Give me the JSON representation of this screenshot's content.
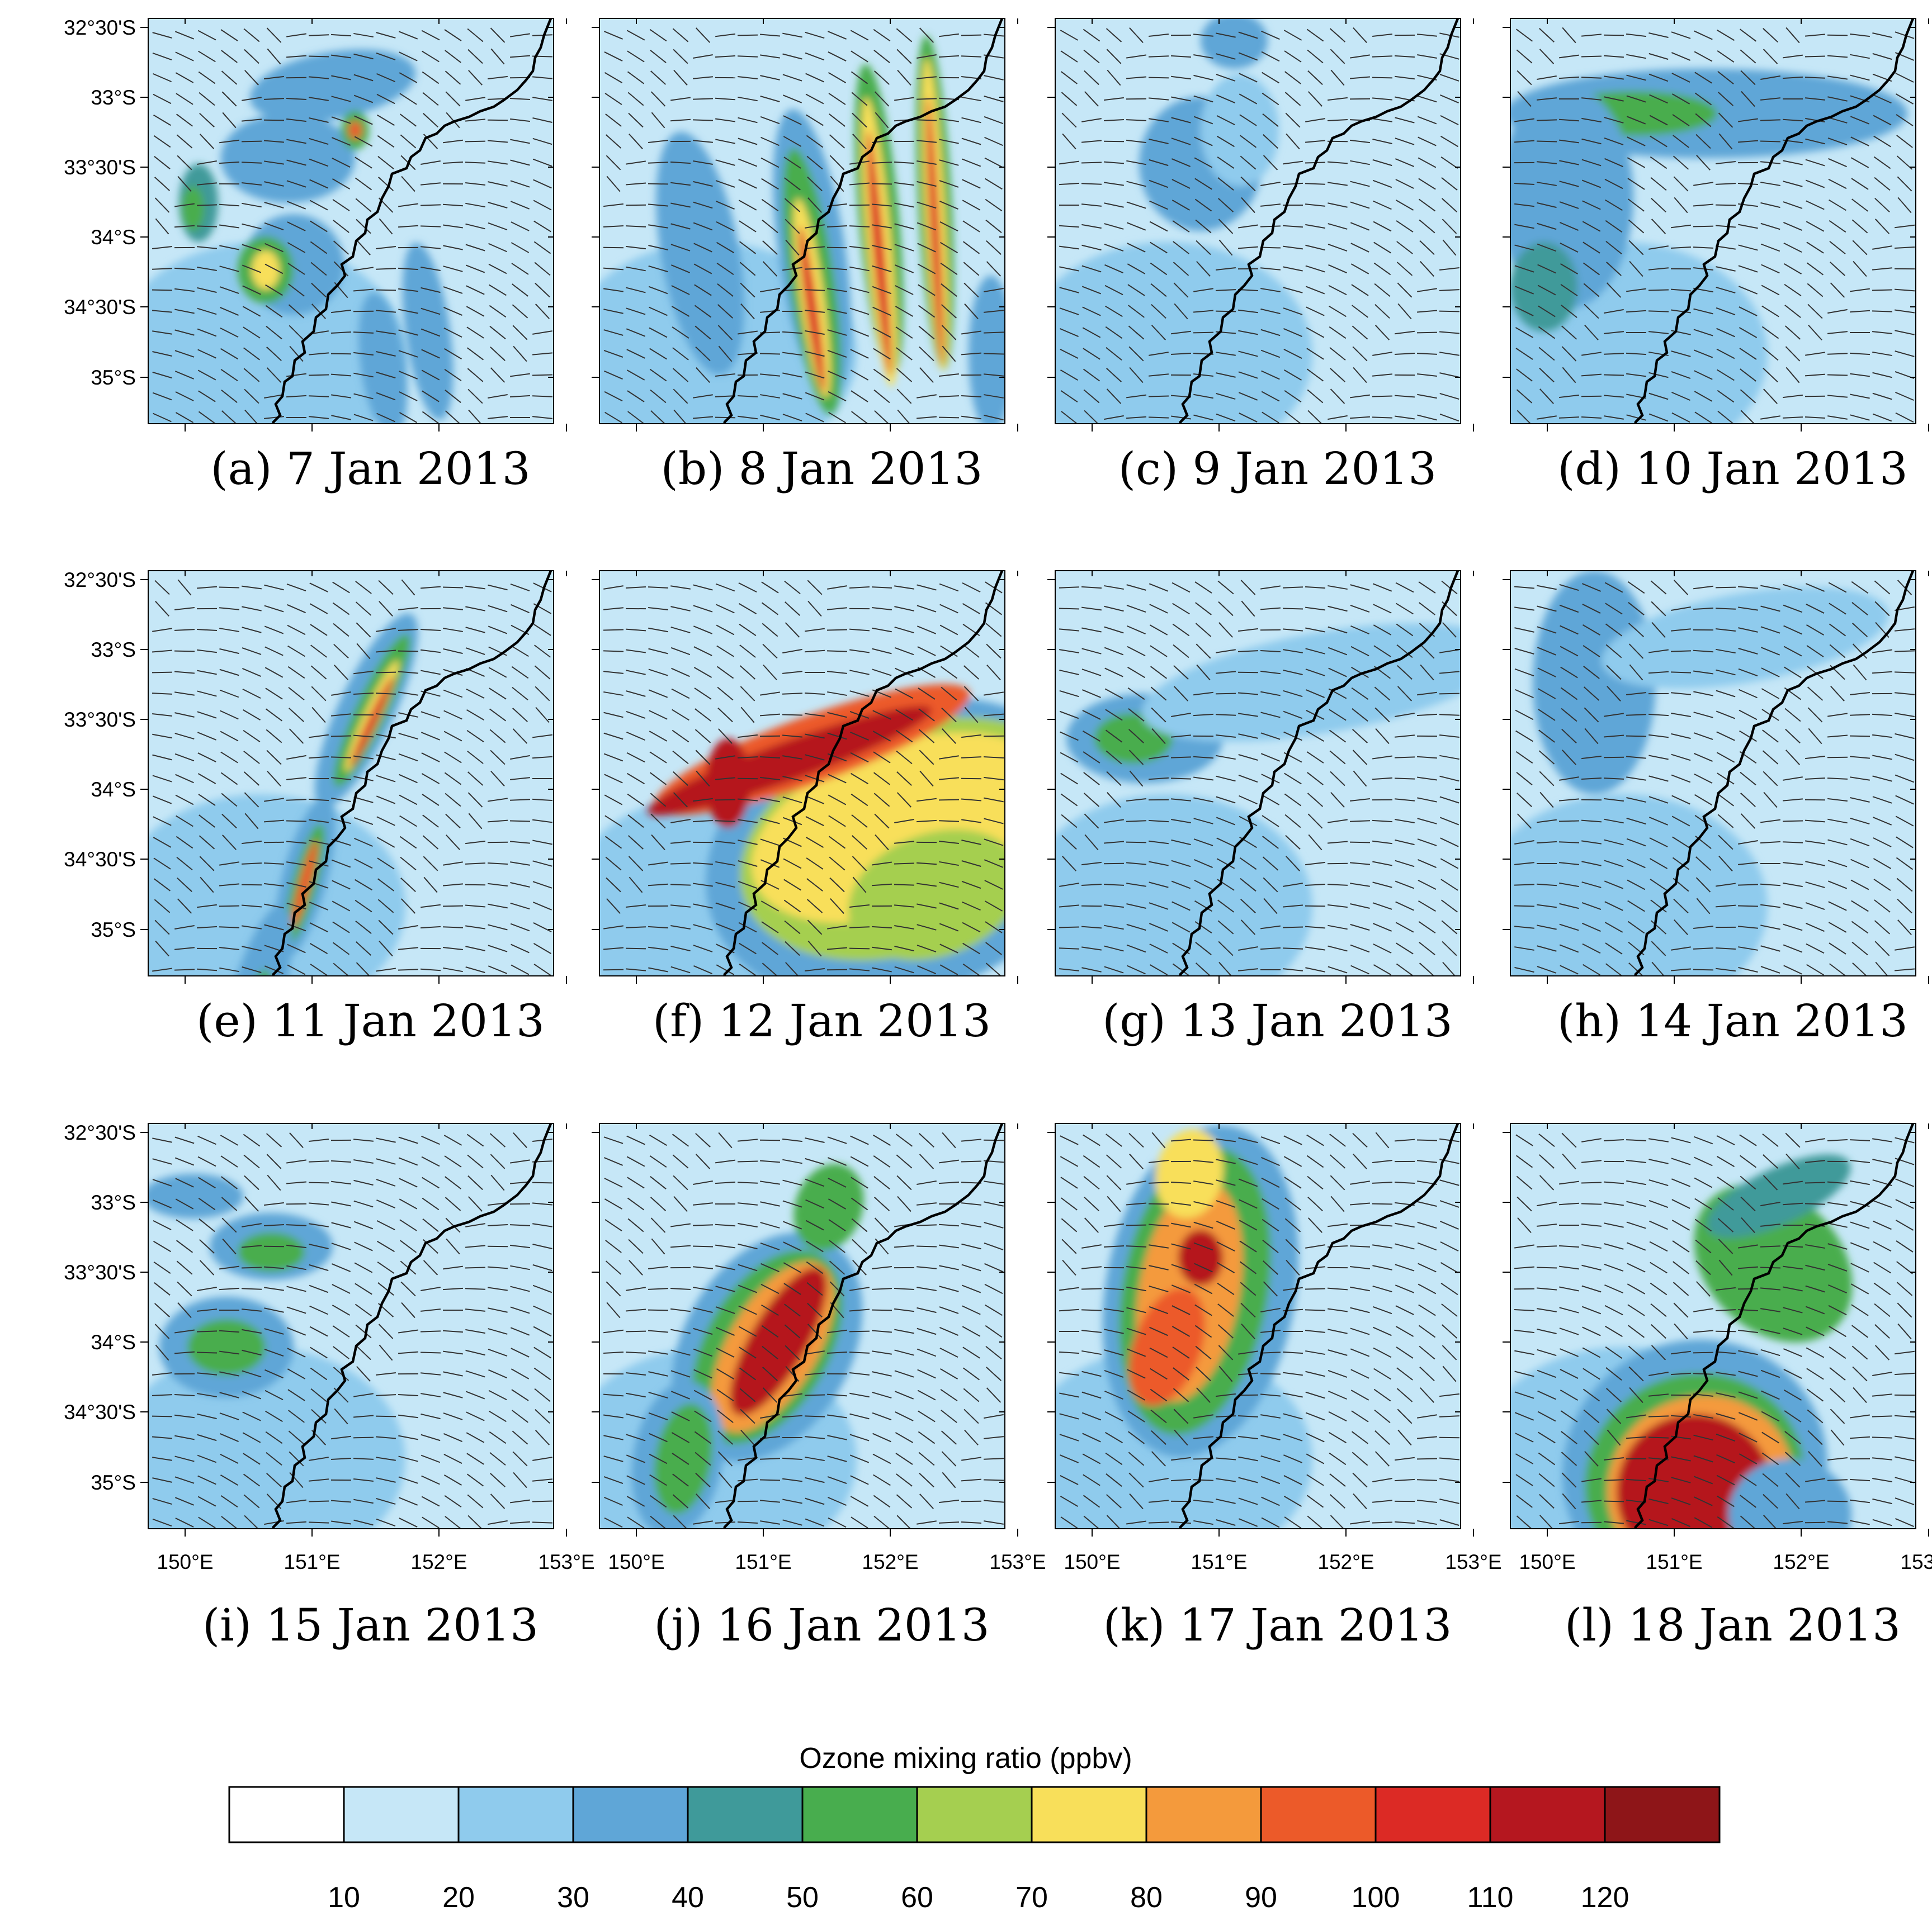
{
  "figure": {
    "latitude_ticks": [
      "32°30'S",
      "33°S",
      "33°30'S",
      "34°S",
      "34°30'S",
      "35°S"
    ],
    "longitude_ticks": [
      "150°E",
      "151°E",
      "152°E",
      "153°E"
    ]
  },
  "panels": [
    {
      "caption": "(a) 7 Jan 2013",
      "pattern": "a"
    },
    {
      "caption": "(b) 8 Jan 2013",
      "pattern": "b"
    },
    {
      "caption": "(c) 9 Jan 2013",
      "pattern": "c"
    },
    {
      "caption": "(d) 10 Jan 2013",
      "pattern": "d"
    },
    {
      "caption": "(e) 11 Jan 2013",
      "pattern": "e"
    },
    {
      "caption": "(f) 12 Jan 2013",
      "pattern": "f"
    },
    {
      "caption": "(g) 13 Jan 2013",
      "pattern": "g"
    },
    {
      "caption": "(h) 14 Jan 2013",
      "pattern": "h"
    },
    {
      "caption": "(i) 15 Jan 2013",
      "pattern": "i"
    },
    {
      "caption": "(j) 16 Jan 2013",
      "pattern": "j"
    },
    {
      "caption": "(k) 17 Jan 2013",
      "pattern": "k"
    },
    {
      "caption": "(l) 18 Jan 2013",
      "pattern": "l"
    }
  ],
  "colorbar": {
    "title": "Ozone mixing ratio  (ppbv)",
    "labels": [
      "10",
      "20",
      "30",
      "40",
      "50",
      "60",
      "70",
      "80",
      "90",
      "100",
      "110",
      "120"
    ],
    "colors": [
      "#ffffff",
      "#c6e7f7",
      "#8fcbed",
      "#5fa6d7",
      "#3f9a9a",
      "#48ad4e",
      "#a5cf50",
      "#f8df5a",
      "#f49a3c",
      "#ec5a29",
      "#dc2a25",
      "#b5171f",
      "#8e1518"
    ]
  }
}
